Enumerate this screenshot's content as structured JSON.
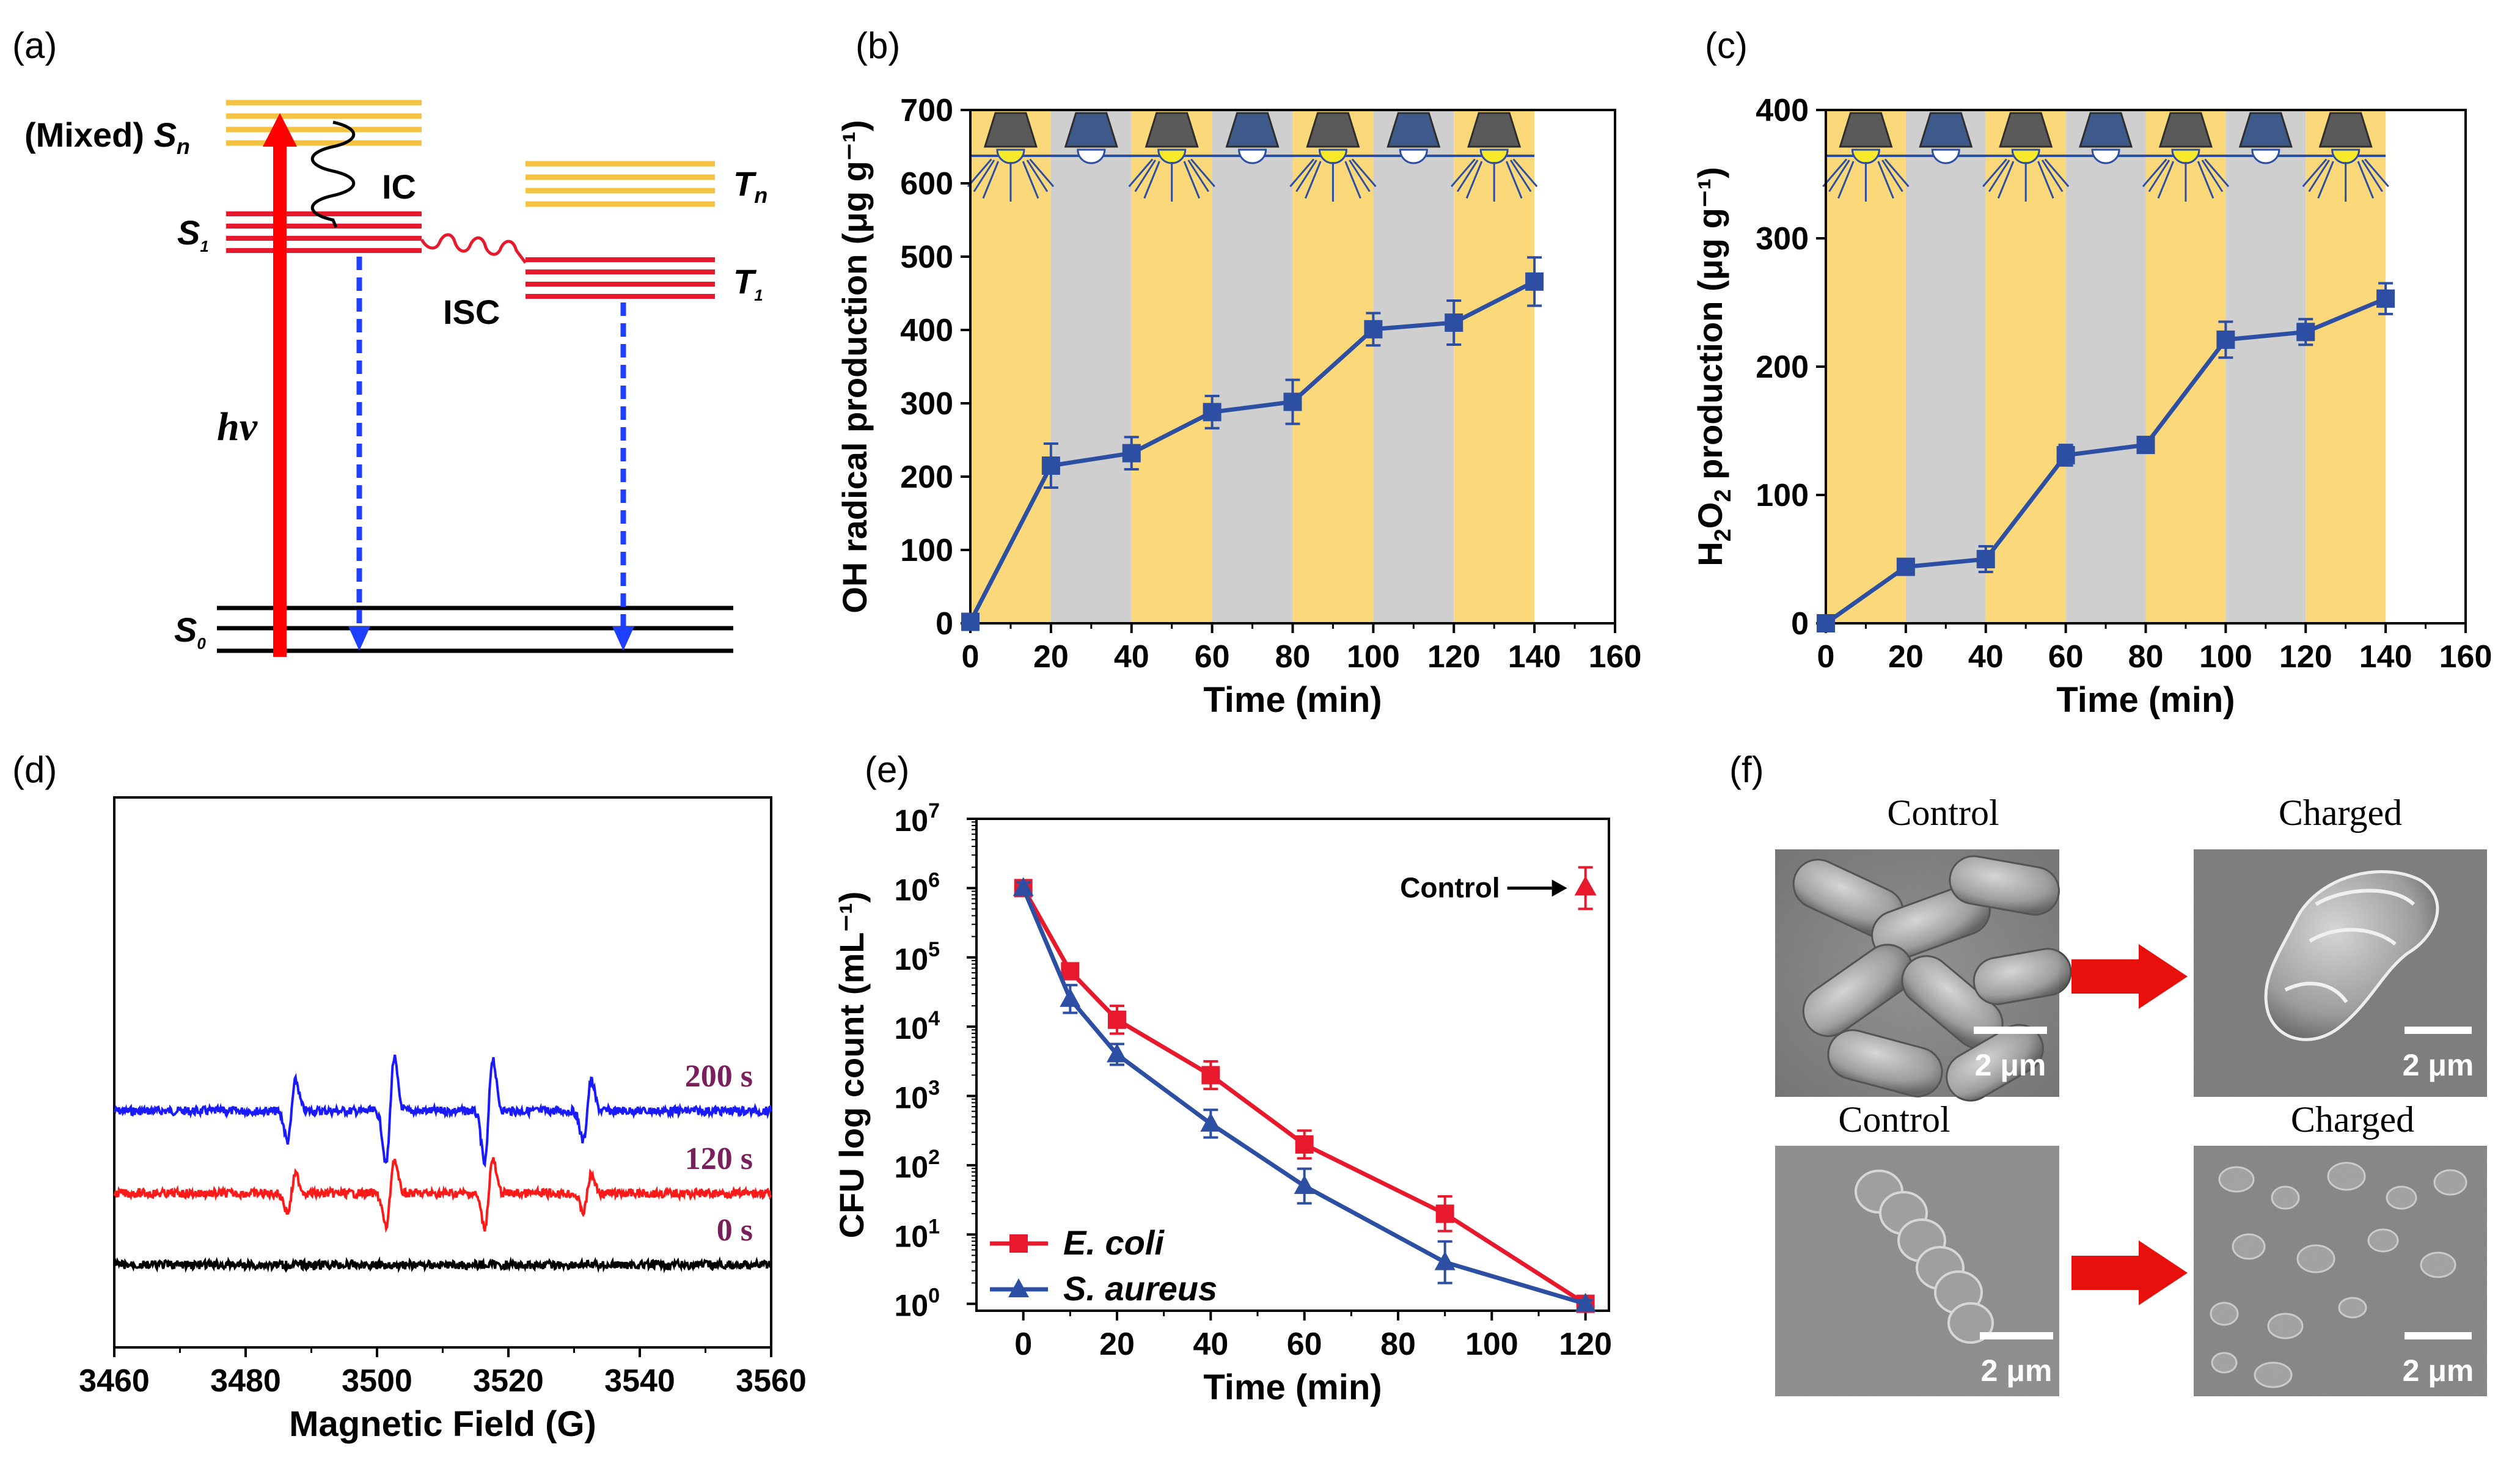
{
  "panel_labels": [
    "(a)",
    "(b)",
    "(c)",
    "(d)",
    "(e)",
    "(f)"
  ],
  "diagram_a": {
    "levels": {
      "sn": "S",
      "sn_sub": "n",
      "mixed": "(Mixed) ",
      "s1": "S",
      "s1_sub": "1",
      "s0": "S",
      "s0_sub": "0",
      "tn": "T",
      "tn_sub": "n",
      "t1": "T",
      "t1_sub": "1"
    },
    "processes": {
      "ic": "IC",
      "isc": "ISC",
      "hv": "hv"
    },
    "colors": {
      "upper": "#f5c242",
      "singlet_triplet": "#e8192c",
      "ground": "#000000",
      "excitation": "#ff0000",
      "emission": "#1f3fff"
    }
  },
  "chart_data": [
    {
      "id": "b",
      "type": "line",
      "title": "",
      "xlabel": "Time (min)",
      "ylabel": "OH radical production (μg g⁻¹)",
      "xlim": [
        0,
        160
      ],
      "ylim": [
        0,
        700
      ],
      "xticks": [
        0,
        20,
        40,
        60,
        80,
        100,
        120,
        140,
        160
      ],
      "yticks": [
        0,
        100,
        200,
        300,
        400,
        500,
        600,
        700
      ],
      "x": [
        0,
        20,
        40,
        60,
        80,
        100,
        120,
        140
      ],
      "values": [
        2,
        215,
        232,
        288,
        302,
        401,
        410,
        466
      ],
      "errors": [
        5,
        30,
        22,
        22,
        30,
        22,
        30,
        33
      ],
      "bands": [
        {
          "from": 0,
          "to": 20,
          "state": "light"
        },
        {
          "from": 20,
          "to": 40,
          "state": "dark"
        },
        {
          "from": 40,
          "to": 60,
          "state": "light"
        },
        {
          "from": 60,
          "to": 80,
          "state": "dark"
        },
        {
          "from": 80,
          "to": 100,
          "state": "light"
        },
        {
          "from": 100,
          "to": 120,
          "state": "dark"
        },
        {
          "from": 120,
          "to": 140,
          "state": "light"
        }
      ],
      "colors": {
        "line": "#2d4fa3",
        "light": "#fbd97a",
        "dark": "#cfcfcf"
      }
    },
    {
      "id": "c",
      "type": "line",
      "title": "",
      "xlabel": "Time (min)",
      "ylabel_main": "H",
      "ylabel_sub": "2",
      "ylabel_mid": "O",
      "ylabel_sub2": "2",
      "ylabel_rest": " production (μg g⁻¹)",
      "xlim": [
        0,
        160
      ],
      "ylim": [
        0,
        400
      ],
      "xticks": [
        0,
        20,
        40,
        60,
        80,
        100,
        120,
        140,
        160
      ],
      "yticks": [
        0,
        100,
        200,
        300,
        400
      ],
      "x": [
        0,
        20,
        40,
        60,
        80,
        100,
        120,
        140
      ],
      "values": [
        0,
        44,
        50,
        131,
        139,
        221,
        227,
        253
      ],
      "errors": [
        3,
        4,
        10,
        8,
        6,
        14,
        10,
        12
      ],
      "bands": [
        {
          "from": 0,
          "to": 20,
          "state": "light"
        },
        {
          "from": 20,
          "to": 40,
          "state": "dark"
        },
        {
          "from": 40,
          "to": 60,
          "state": "light"
        },
        {
          "from": 60,
          "to": 80,
          "state": "dark"
        },
        {
          "from": 80,
          "to": 100,
          "state": "light"
        },
        {
          "from": 100,
          "to": 120,
          "state": "dark"
        },
        {
          "from": 120,
          "to": 140,
          "state": "light"
        }
      ],
      "colors": {
        "line": "#2d4fa3",
        "light": "#fbd97a",
        "dark": "#cfcfcf"
      }
    },
    {
      "id": "d",
      "type": "line",
      "title": "",
      "xlabel": "Magnetic Field (G)",
      "ylabel": "",
      "xlim": [
        3460,
        3560
      ],
      "xticks": [
        3460,
        3480,
        3500,
        3520,
        3540,
        3560
      ],
      "peaks": [
        3487,
        3502,
        3517,
        3532
      ],
      "series": [
        {
          "name": "200 s",
          "color": "#1a1aff",
          "offset": 0.57,
          "amp": [
            0.08,
            0.14,
            0.14,
            0.08
          ]
        },
        {
          "name": "120 s",
          "color": "#ff1a1a",
          "offset": 0.72,
          "amp": [
            0.05,
            0.09,
            0.09,
            0.05
          ]
        },
        {
          "name": "0 s",
          "color": "#000000",
          "offset": 0.85,
          "amp": [
            0,
            0,
            0,
            0
          ]
        }
      ],
      "label_color": "#7a1f5c"
    },
    {
      "id": "e",
      "type": "line",
      "title": "",
      "xlabel": "Time (min)",
      "ylabel": "CFU log count (mL⁻¹)",
      "yscale": "log",
      "xlim": [
        -10,
        125
      ],
      "ylim_exp": [
        -0.1,
        7
      ],
      "xticks": [
        0,
        20,
        40,
        60,
        80,
        100,
        120
      ],
      "yticks_exp": [
        0,
        1,
        2,
        3,
        4,
        5,
        6,
        7
      ],
      "ytick_base": "10",
      "series": [
        {
          "name": "E. coli",
          "color": "#e8192c",
          "marker": "square",
          "x": [
            0,
            10,
            20,
            40,
            60,
            90,
            120
          ],
          "exp": [
            6.0,
            4.8,
            4.1,
            3.3,
            2.3,
            1.3,
            0
          ],
          "err": [
            0.08,
            0.1,
            0.2,
            0.2,
            0.2,
            0.25,
            0.05
          ]
        },
        {
          "name": "S. aureus",
          "color": "#2d4fa3",
          "marker": "triangle",
          "x": [
            0,
            10,
            20,
            40,
            60,
            90,
            120
          ],
          "exp": [
            6.0,
            4.4,
            3.6,
            2.6,
            1.7,
            0.6,
            0
          ],
          "err": [
            0.08,
            0.2,
            0.15,
            0.2,
            0.25,
            0.3,
            0.05
          ]
        }
      ],
      "control": {
        "label": "Control",
        "x": 120,
        "exp": 6.0,
        "err": 0.3
      }
    }
  ],
  "sem_f": {
    "titles": [
      "Control",
      "Charged",
      "Control",
      "Charged"
    ],
    "scale_bar": "2 μm",
    "arrow_color": "#e8100c"
  }
}
